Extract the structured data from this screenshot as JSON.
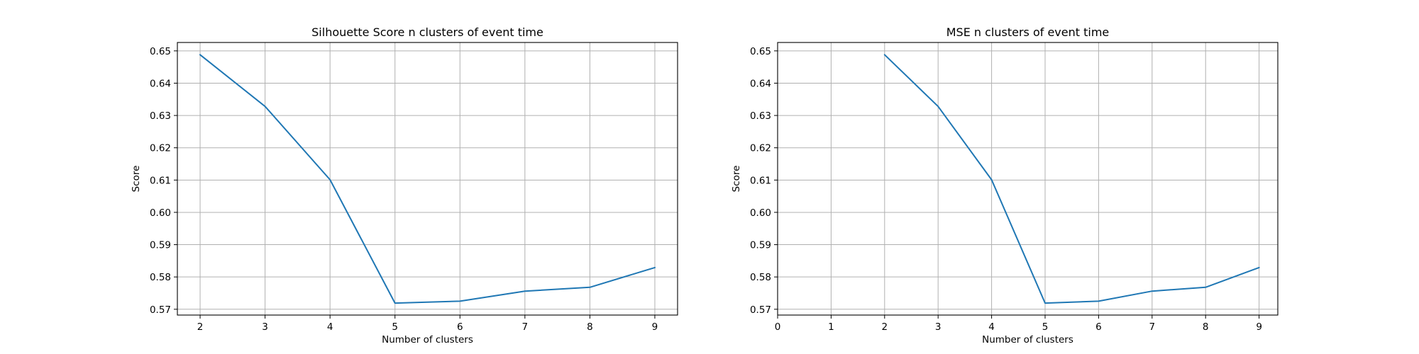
{
  "chart_data": [
    {
      "type": "line",
      "title": "Silhouette Score n clusters of event time",
      "xlabel": "Number of clusters",
      "ylabel": "Score",
      "xlim": [
        1.65,
        9.35
      ],
      "ylim": [
        0.5682,
        0.6526
      ],
      "xticks": [
        2,
        3,
        4,
        5,
        6,
        7,
        8,
        9
      ],
      "yticks": [
        0.57,
        0.58,
        0.59,
        0.6,
        0.61,
        0.62,
        0.63,
        0.64,
        0.65
      ],
      "ytick_labels": [
        "0.57",
        "0.58",
        "0.59",
        "0.60",
        "0.61",
        "0.62",
        "0.63",
        "0.64",
        "0.65"
      ],
      "grid": true,
      "series": [
        {
          "color": "#1f77b4",
          "x": [
            2,
            3,
            4,
            5,
            6,
            7,
            8,
            9
          ],
          "y": [
            0.6488,
            0.6328,
            0.6101,
            0.5719,
            0.5725,
            0.5756,
            0.5768,
            0.5829
          ]
        }
      ]
    },
    {
      "type": "line",
      "title": "MSE n clusters of event time",
      "xlabel": "Number of clusters",
      "ylabel": "Score",
      "xlim": [
        0,
        9.35
      ],
      "ylim": [
        0.5682,
        0.6526
      ],
      "xticks": [
        0,
        1,
        2,
        3,
        4,
        5,
        6,
        7,
        8,
        9
      ],
      "yticks": [
        0.57,
        0.58,
        0.59,
        0.6,
        0.61,
        0.62,
        0.63,
        0.64,
        0.65
      ],
      "ytick_labels": [
        "0.57",
        "0.58",
        "0.59",
        "0.60",
        "0.61",
        "0.62",
        "0.63",
        "0.64",
        "0.65"
      ],
      "grid": true,
      "series": [
        {
          "color": "#1f77b4",
          "x": [
            2,
            3,
            4,
            5,
            6,
            7,
            8,
            9
          ],
          "y": [
            0.6488,
            0.6328,
            0.6101,
            0.5719,
            0.5725,
            0.5756,
            0.5768,
            0.5829
          ]
        }
      ]
    }
  ]
}
